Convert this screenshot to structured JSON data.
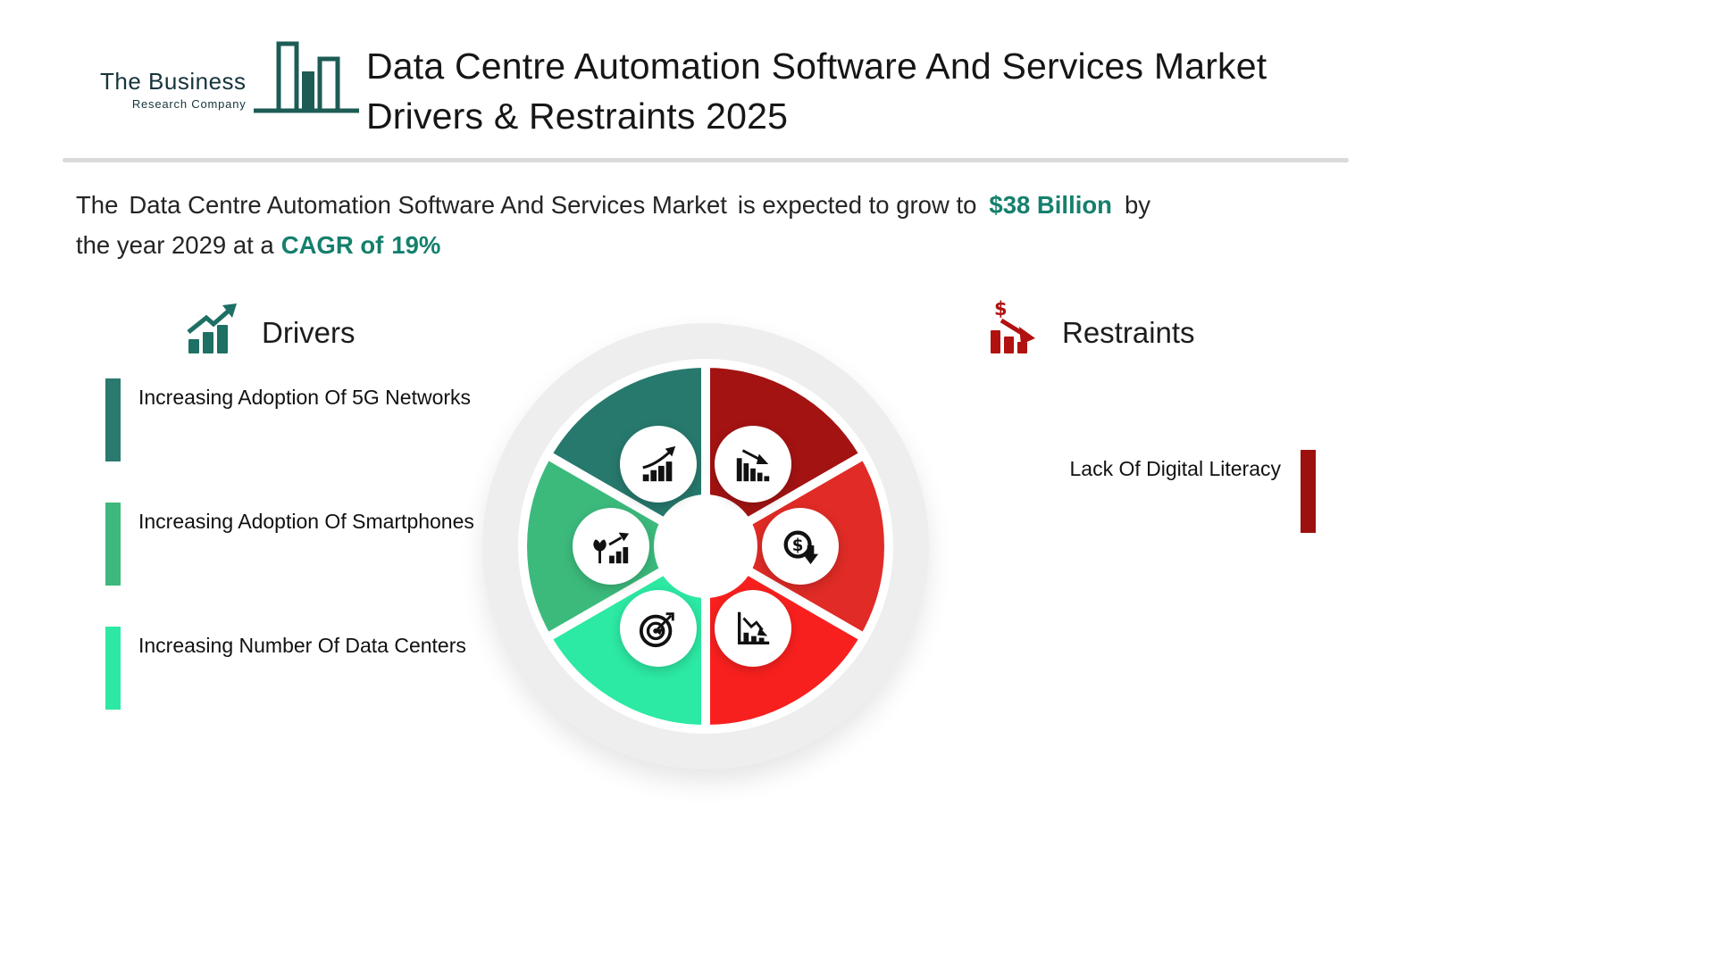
{
  "logo": {
    "line1": "The Business",
    "line2": "Research Company",
    "color": "#1d5c55"
  },
  "header": {
    "title_line1": "Data Centre Automation Software And Services Market",
    "title_line2": "Drivers & Restraints 2025"
  },
  "summary": {
    "p1": "The",
    "market": "Data Centre Automation Software And Services Market",
    "p2": "is expected to grow to",
    "value": "$38 Billion",
    "p3": "by",
    "p4": "the year 2029 at a",
    "cagr_label": "CAGR of",
    "cagr_value": "19%"
  },
  "drivers": {
    "heading": "Drivers",
    "icon": "growth-bars-arrow-icon",
    "items": [
      {
        "label": "Increasing Adoption Of 5G Networks",
        "color": "#2a7a6e"
      },
      {
        "label": "Increasing Adoption Of Smartphones",
        "color": "#3eb87d"
      },
      {
        "label": "Increasing Number Of Data Centers",
        "color": "#2ee8a5"
      }
    ]
  },
  "restraints": {
    "heading": "Restraints",
    "icon": "declining-dollar-bars-icon",
    "items": [
      {
        "label": "Lack Of Digital Literacy",
        "color": "#9c110d"
      }
    ]
  },
  "wheel": {
    "segments": [
      {
        "position": "top-left",
        "color": "#27796d",
        "icon": "growth-chart-icon"
      },
      {
        "position": "top-right",
        "color": "#a31312",
        "icon": "declining-bars-icon"
      },
      {
        "position": "right",
        "color": "#e02b26",
        "icon": "dollar-decline-icon"
      },
      {
        "position": "bottom-right",
        "color": "#f8201e",
        "icon": "declining-graph-icon"
      },
      {
        "position": "bottom-left",
        "color": "#2ce9a3",
        "icon": "target-icon"
      },
      {
        "position": "left",
        "color": "#3cba7c",
        "icon": "plant-growth-icon"
      }
    ]
  },
  "colors": {
    "accent_teal": "#15806d",
    "divider": "#dadada"
  }
}
